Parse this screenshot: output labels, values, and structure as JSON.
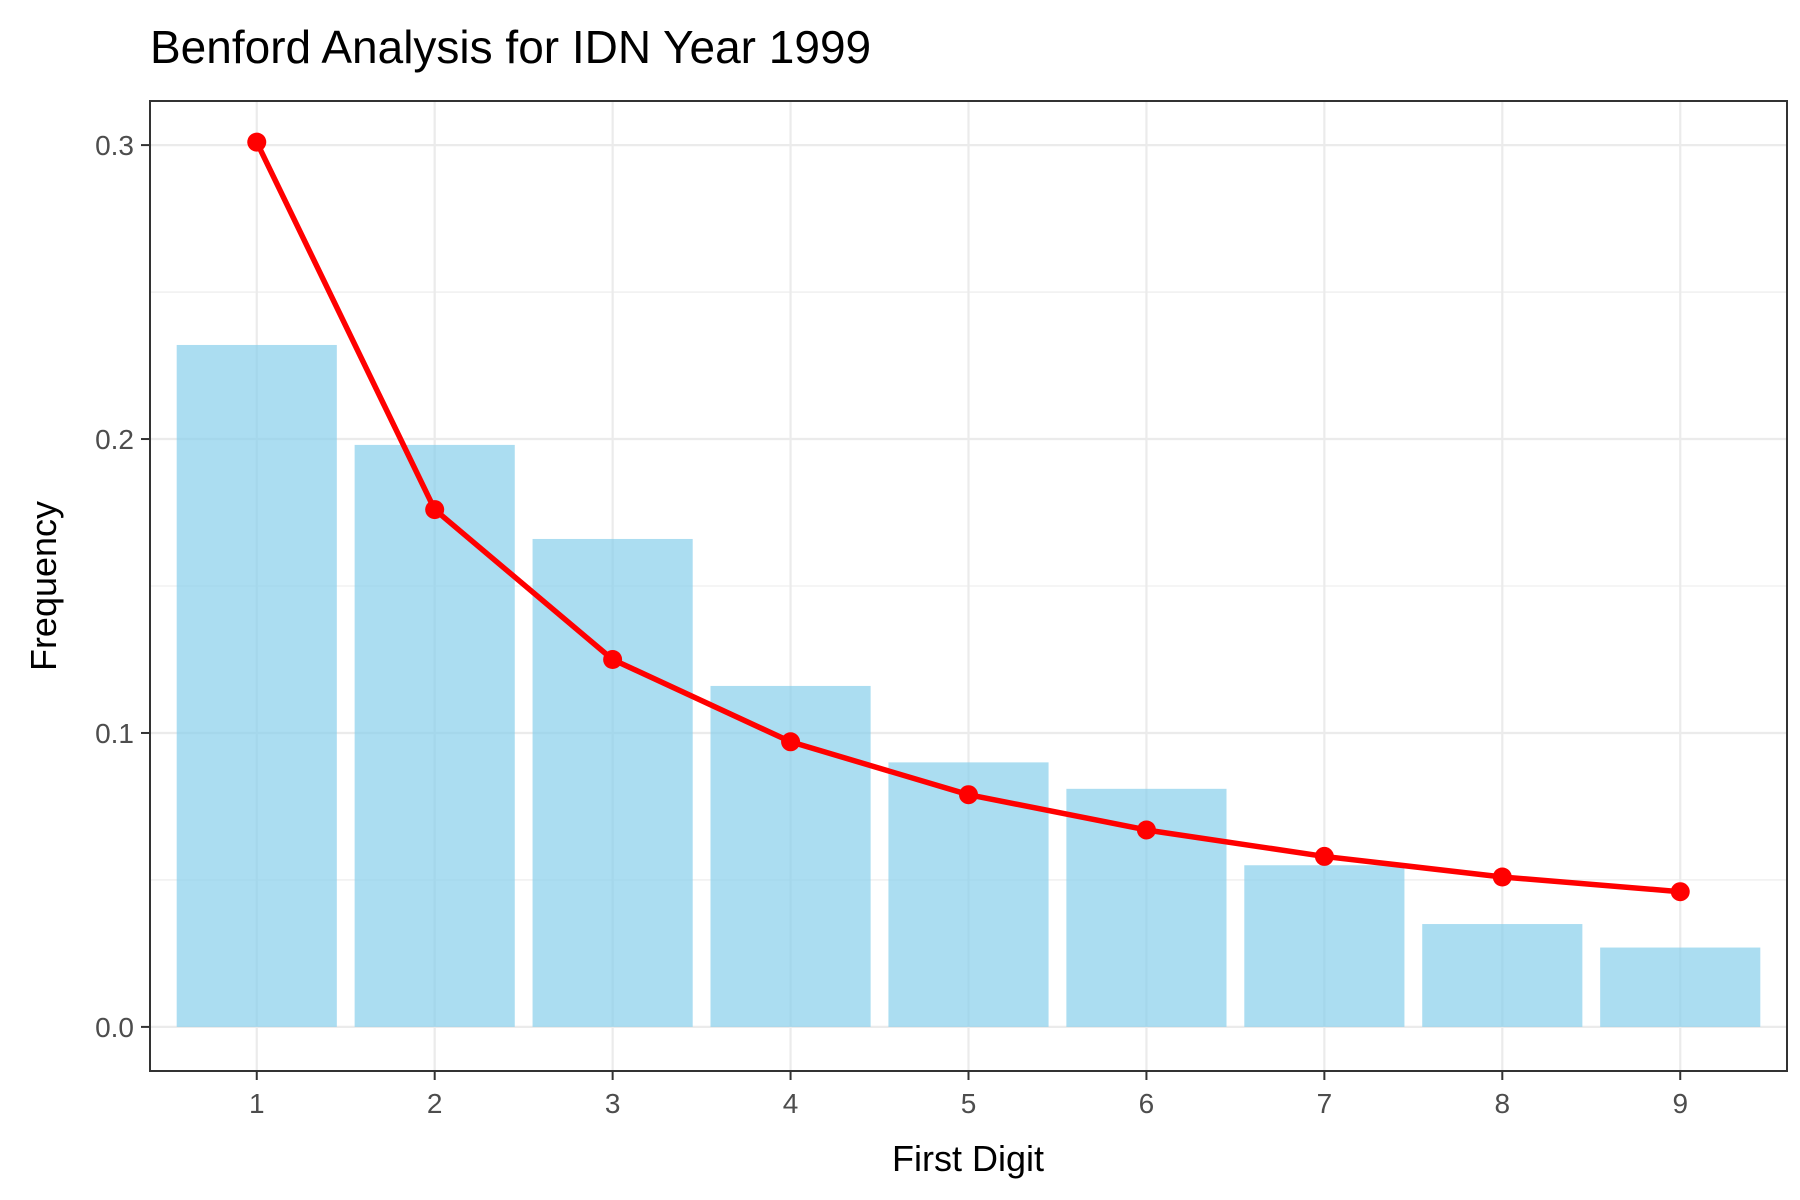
{
  "chart_data": {
    "type": "bar",
    "title": "Benford Analysis for IDN Year 1999",
    "xlabel": "First Digit",
    "ylabel": "Frequency",
    "categories": [
      "1",
      "2",
      "3",
      "4",
      "5",
      "6",
      "7",
      "8",
      "9"
    ],
    "ylim": [
      -0.015,
      0.315
    ],
    "yticks": [
      "0.0",
      "0.1",
      "0.2",
      "0.3"
    ],
    "grid": true,
    "series": [
      {
        "type": "bar",
        "values": [
          0.232,
          0.198,
          0.166,
          0.116,
          0.09,
          0.081,
          0.055,
          0.035,
          0.027
        ]
      },
      {
        "type": "line",
        "values": [
          0.301,
          0.176,
          0.125,
          0.097,
          0.079,
          0.067,
          0.058,
          0.051,
          0.046
        ]
      }
    ],
    "colors": {
      "bar": "#87CEEB",
      "line": "#FF0000",
      "grid": "#EBEBEB",
      "border": "#333333"
    }
  }
}
